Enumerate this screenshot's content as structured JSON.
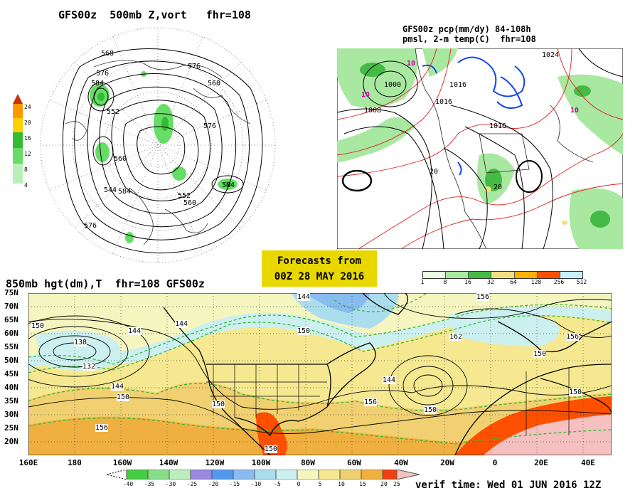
{
  "polar_panel": {
    "title": "GFS00z  500mb Z,vort   fhr=108",
    "colorbar_ticks": [
      "24",
      "20",
      "16",
      "12",
      "8",
      "4"
    ],
    "colorbar_colors": [
      "#cc3300",
      "#ff9900",
      "#ffd000",
      "#33bb33",
      "#66dd66",
      "#b8f0b8"
    ],
    "contour_labels": [
      "568",
      "576",
      "584",
      "552",
      "560",
      "544",
      "584",
      "576",
      "568",
      "576",
      "552",
      "560",
      "584",
      "576"
    ]
  },
  "precip_panel": {
    "title_line1": "GFS00z pcp(mm/dy) 84-108h",
    "title_line2": "pmsl, 2-m temp(C)  fhr=108",
    "colorbar_ticks": [
      "1",
      "8",
      "16",
      "32",
      "64",
      "128",
      "256",
      "512"
    ],
    "colorbar_colors": [
      "#e8ffe0",
      "#a8e8a0",
      "#44bb44",
      "#f0e080",
      "#ffb000",
      "#ff5000",
      "#c8f0ff"
    ],
    "contour_labels": [
      "1024",
      "1000",
      "1008",
      "1016",
      "1016",
      "1016",
      "10",
      "10",
      "10",
      "20",
      "20"
    ]
  },
  "banner": {
    "line1": "Forecasts from",
    "line2": "00Z 28 MAY 2016"
  },
  "main_panel": {
    "title": "850mb hgt(dm),T  fhr=108 GFS00z",
    "lat_labels": [
      "75N",
      "70N",
      "65N",
      "60N",
      "55N",
      "50N",
      "45N",
      "40N",
      "35N",
      "30N",
      "25N",
      "20N"
    ],
    "lon_labels": [
      "160E",
      "180",
      "160W",
      "140W",
      "120W",
      "100W",
      "80W",
      "60W",
      "40W",
      "20W",
      "0",
      "20E",
      "40E"
    ],
    "contour_labels": [
      "150",
      "144",
      "138",
      "132",
      "144",
      "150",
      "156",
      "144",
      "150",
      "144",
      "150",
      "156",
      "162",
      "156",
      "144",
      "150",
      "150",
      "150",
      "156",
      "150"
    ],
    "colorbar_ticks": [
      "-40",
      "-35",
      "-30",
      "-25",
      "-20",
      "-15",
      "-10",
      "-5",
      "0",
      "5",
      "10",
      "15",
      "20",
      "25"
    ],
    "colorbar_colors": [
      "#44cc44",
      "#88dd88",
      "#bbeebb",
      "#9988dd",
      "#5599ee",
      "#88bbee",
      "#aaddee",
      "#ccf0f0",
      "#f5f5c0",
      "#f5e890",
      "#f0d070",
      "#f0b040",
      "#f04010"
    ],
    "verif_time": "verif time: Wed 01 JUN 2016 12Z"
  }
}
